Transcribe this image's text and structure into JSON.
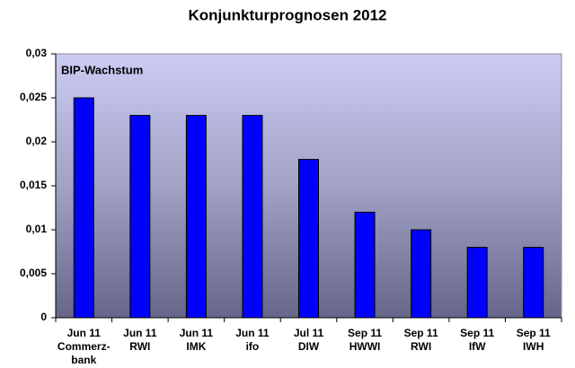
{
  "chart_data": {
    "type": "bar",
    "title": "Konjunkturprognosen 2012",
    "annotation": "BIP-Wachstum",
    "categories": [
      [
        "Jun 11",
        "Commerz-",
        "bank"
      ],
      [
        "Jun 11",
        "RWI"
      ],
      [
        "Jun 11",
        "IMK"
      ],
      [
        "Jun 11",
        "ifo"
      ],
      [
        "Jul 11",
        "DIW"
      ],
      [
        "Sep 11",
        "HWWI"
      ],
      [
        "Sep 11",
        "RWI"
      ],
      [
        "Sep 11",
        "IfW"
      ],
      [
        "Sep 11",
        "IWH"
      ]
    ],
    "values": [
      0.025,
      0.023,
      0.023,
      0.023,
      0.018,
      0.012,
      0.01,
      0.008,
      0.008
    ],
    "color": "#0000ff",
    "ylim": [
      0,
      0.03
    ],
    "yticks": [
      0,
      {
        "value": 0.005,
        "label": "0,005"
      },
      {
        "value": 0.01,
        "label": "0,01"
      },
      {
        "value": 0.015,
        "label": "0,015"
      },
      {
        "value": 0.02,
        "label": "0,02"
      },
      {
        "value": 0.025,
        "label": "0,025"
      },
      {
        "value": 0.03,
        "label": "0,03"
      }
    ]
  }
}
